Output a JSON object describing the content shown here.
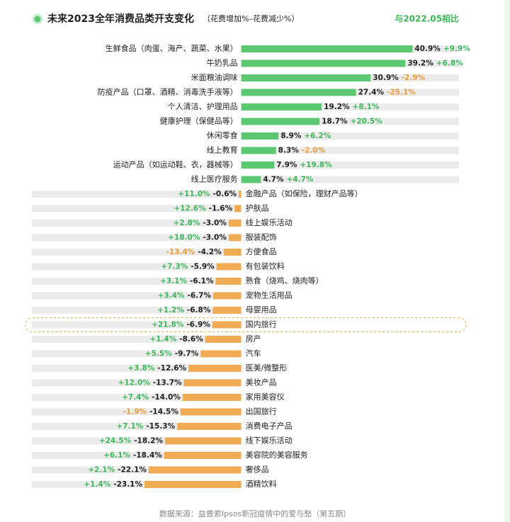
{
  "chart_data": {
    "type": "diverging-bar",
    "title": "未来2023全年消费品类开支变化",
    "subtitle": "（花费增加%–花费减少%）",
    "change_header": "与2022.05相比",
    "source": "数据来源：益普索Ipsos新冠疫情中的爱与愁（第五期）",
    "categories": [
      "生鲜食品（肉蛋、海产、蔬菜、水果）",
      "牛奶乳品",
      "米面粮油调味",
      "防疫产品（口罩、酒精、消毒洗手液等）",
      "个人清洁、护理用品",
      "健康护理（保健品等）",
      "休闲零食",
      "线上教育",
      "运动产品（如运动鞋、衣，器械等）",
      "线上医疗服务",
      "金融产品（如保险，理财产品等）",
      "护肤品",
      "线上娱乐活动",
      "服装配饰",
      "方便食品",
      "有包装饮料",
      "熟食（烧鸡、烧肉等）",
      "宠物生活用品",
      "母婴用品",
      "国内旅行",
      "房产",
      "汽车",
      "医美/微整形",
      "美妆产品",
      "家用美容仪",
      "出国旅行",
      "消费电子产品",
      "线下娱乐活动",
      "美容院的美容服务",
      "奢侈品",
      "酒精饮料"
    ],
    "values": [
      40.9,
      39.2,
      30.9,
      27.4,
      19.2,
      18.7,
      8.9,
      8.3,
      7.9,
      4.7,
      -0.6,
      -1.6,
      -3.0,
      -3.0,
      -4.2,
      -5.9,
      -6.1,
      -6.7,
      -6.8,
      -6.9,
      -8.6,
      -9.7,
      -12.6,
      -13.7,
      -14.0,
      -14.5,
      -15.3,
      -18.2,
      -18.4,
      -22.1,
      -23.1
    ],
    "value_labels": [
      "40.9%",
      "39.2%",
      "30.9%",
      "27.4%",
      "19.2%",
      "18.7%",
      "8.9%",
      "8.3%",
      "7.9%",
      "4.7%",
      "-0.6%",
      "-1.6%",
      "-3.0%",
      "-3.0%",
      "-4.2%",
      "-5.9%",
      "-6.1%",
      "-6.7%",
      "-6.8%",
      "-6.9%",
      "-8.6%",
      "-9.7%",
      "-12.6%",
      "-13.7%",
      "-14.0%",
      "-14.5%",
      "-15.3%",
      "-18.2%",
      "-18.4%",
      "-22.1%",
      "-23.1%"
    ],
    "changes": [
      9.9,
      6.8,
      -2.9,
      -25.1,
      8.1,
      20.5,
      6.2,
      -2.0,
      19.8,
      4.7,
      11.0,
      12.6,
      2.8,
      18.0,
      -13.4,
      7.3,
      3.1,
      3.4,
      1.2,
      21.8,
      1.4,
      5.5,
      3.8,
      12.0,
      7.4,
      -1.9,
      7.1,
      24.5,
      6.1,
      2.1,
      1.4
    ],
    "change_labels": [
      "+9.9%",
      "+6.8%",
      "-2.9%",
      "-25.1%",
      "+8.1%",
      "+20.5%",
      "+6.2%",
      "-2.0%",
      "+19.8%",
      "+4.7%",
      "+11.0%",
      "+12.6%",
      "+2.8%",
      "+18.0%",
      "-13.4%",
      "+7.3%",
      "+3.1%",
      "+3.4%",
      "+1.2%",
      "+21.8%",
      "+1.4%",
      "+5.5%",
      "+3.8%",
      "+12.0%",
      "+7.4%",
      "-1.9%",
      "+7.1%",
      "+24.5%",
      "+6.1%",
      "+2.1%",
      "+1.4%"
    ],
    "positive_color": "#5cc872",
    "negative_color": "#f2ab55",
    "xlim": [
      -50,
      52
    ],
    "highlight": 19
  }
}
